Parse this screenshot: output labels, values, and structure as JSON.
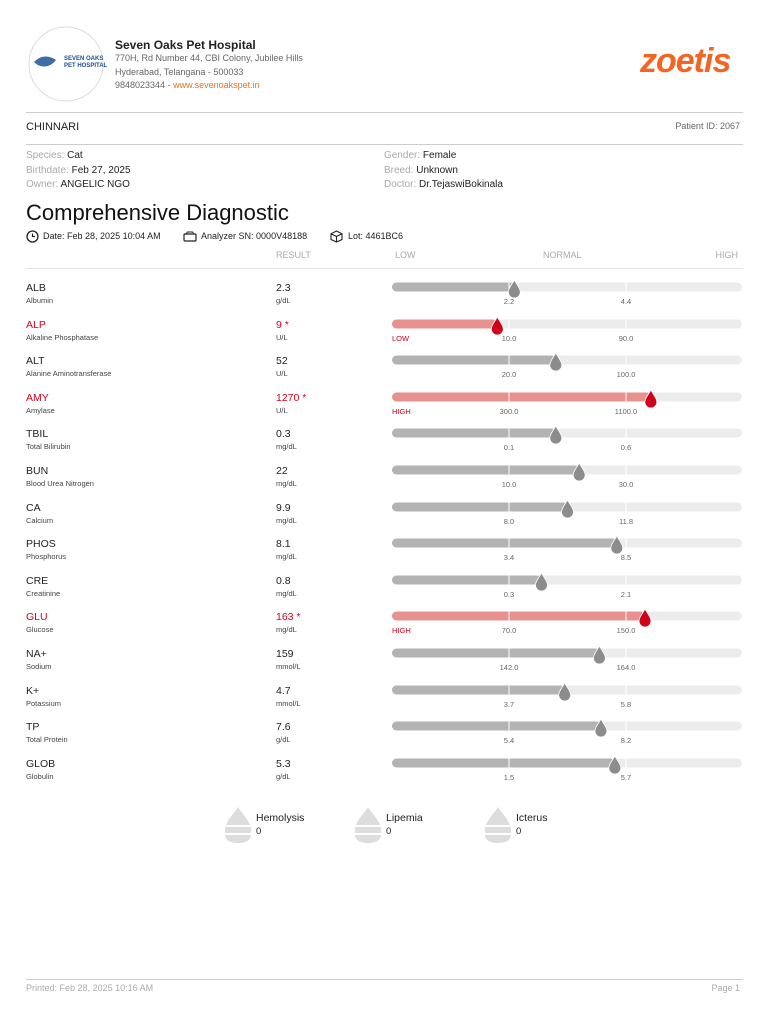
{
  "header": {
    "logo_line1": "SEVEN OAKS",
    "logo_line2": "PET HOSPITAL",
    "hospital_name": "Seven Oaks Pet Hospital",
    "address_line1": "770H, Rd Number 44, CBI Colony, Jubilee Hills",
    "address_line2": "Hyderabad, Telangana - 500033",
    "phone": "9848023344 -",
    "website": "www.sevenoakspet.in",
    "brand": "zoetis"
  },
  "patient": {
    "name": "CHINNARI",
    "patient_id_label": "Patient ID:",
    "patient_id": "2067",
    "fields": [
      {
        "label": "Species:",
        "value": "Cat"
      },
      {
        "label": "Gender:",
        "value": "Female"
      },
      {
        "label": "Birthdate:",
        "value": "Feb 27, 2025"
      },
      {
        "label": "Breed:",
        "value": "Unknown"
      },
      {
        "label": "Owner:",
        "value": "ANGELIC NGO"
      },
      {
        "label": "Doctor:",
        "value": "Dr.TejaswiBokinala"
      }
    ]
  },
  "report": {
    "title": "Comprehensive Diagnostic",
    "date_label": "Date:",
    "date": "Feb 28, 2025 10:04 AM",
    "analyzer_label": "Analyzer SN:",
    "analyzer": "0000V48188",
    "lot_label": "Lot:",
    "lot": "4461BC6"
  },
  "columns": {
    "result": "RESULT",
    "low": "LOW",
    "normal": "NORMAL",
    "high": "HIGH"
  },
  "tests": [
    {
      "code": "ALB",
      "name": "Albumin",
      "result": 2.3,
      "unit": "g/dL",
      "ref_low": 2.2,
      "ref_high": 4.4
    },
    {
      "code": "ALP",
      "name": "Alkaline Phosphatase",
      "result": 9,
      "result_label": "9 *",
      "unit": "U/L",
      "ref_low": {
        "value": 10,
        "label": "10.0"
      },
      "ref_high": {
        "value": 90,
        "label": "90.0"
      },
      "flag": "LOW"
    },
    {
      "code": "ALT",
      "name": "Alanine Aminotransferase",
      "result": 52,
      "unit": "U/L",
      "ref_low": {
        "value": 20,
        "label": "20.0"
      },
      "ref_high": {
        "value": 100,
        "label": "100.0"
      }
    },
    {
      "code": "AMY",
      "name": "Amylase",
      "result": 1270,
      "result_label": "1270 *",
      "unit": "U/L",
      "ref_low": {
        "value": 300,
        "label": "300.0"
      },
      "ref_high": {
        "value": 1100,
        "label": "1100.0"
      },
      "flag": "HIGH"
    },
    {
      "code": "TBIL",
      "name": "Total Bilirubin",
      "result": 0.3,
      "unit": "mg/dL",
      "ref_low": 0.1,
      "ref_high": 0.6
    },
    {
      "code": "BUN",
      "name": "Blood Urea Nitrogen",
      "result": 22,
      "unit": "mg/dL",
      "ref_low": {
        "value": 10,
        "label": "10.0"
      },
      "ref_high": {
        "value": 30,
        "label": "30.0"
      }
    },
    {
      "code": "CA",
      "name": "Calcium",
      "result": 9.9,
      "unit": "mg/dL",
      "ref_low": {
        "value": 8,
        "label": "8.0"
      },
      "ref_high": 11.8
    },
    {
      "code": "PHOS",
      "name": "Phosphorus",
      "result": 8.1,
      "unit": "mg/dL",
      "ref_low": 3.4,
      "ref_high": 8.5
    },
    {
      "code": "CRE",
      "name": "Creatinine",
      "result": 0.8,
      "unit": "mg/dL",
      "ref_low": 0.3,
      "ref_high": 2.1
    },
    {
      "code": "GLU",
      "name": "Glucose",
      "result": 163,
      "result_label": "163 *",
      "unit": "mg/dL",
      "ref_low": {
        "value": 70,
        "label": "70.0"
      },
      "ref_high": {
        "value": 150,
        "label": "150.0"
      },
      "flag": "HIGH"
    },
    {
      "code": "NA+",
      "name": "Sodium",
      "result": 159,
      "unit": "mmol/L",
      "ref_low": {
        "value": 142,
        "label": "142.0"
      },
      "ref_high": {
        "value": 164,
        "label": "164.0"
      }
    },
    {
      "code": "K+",
      "name": "Potassium",
      "result": 4.7,
      "unit": "mmol/L",
      "ref_low": 3.7,
      "ref_high": 5.8
    },
    {
      "code": "TP",
      "name": "Total Protein",
      "result": 7.6,
      "unit": "g/dL",
      "ref_low": 5.4,
      "ref_high": 8.2
    },
    {
      "code": "GLOB",
      "name": "Globulin",
      "result": 5.3,
      "unit": "g/dL",
      "ref_low": 1.5,
      "ref_high": 5.7
    }
  ],
  "indices": [
    {
      "name": "Hemolysis",
      "value": 0
    },
    {
      "name": "Lipemia",
      "value": 0
    },
    {
      "name": "Icterus",
      "value": 0
    }
  ],
  "footer": {
    "printed_label": "Printed:",
    "printed": "Feb 28, 2025 10:16 AM",
    "page": "Page 1"
  }
}
